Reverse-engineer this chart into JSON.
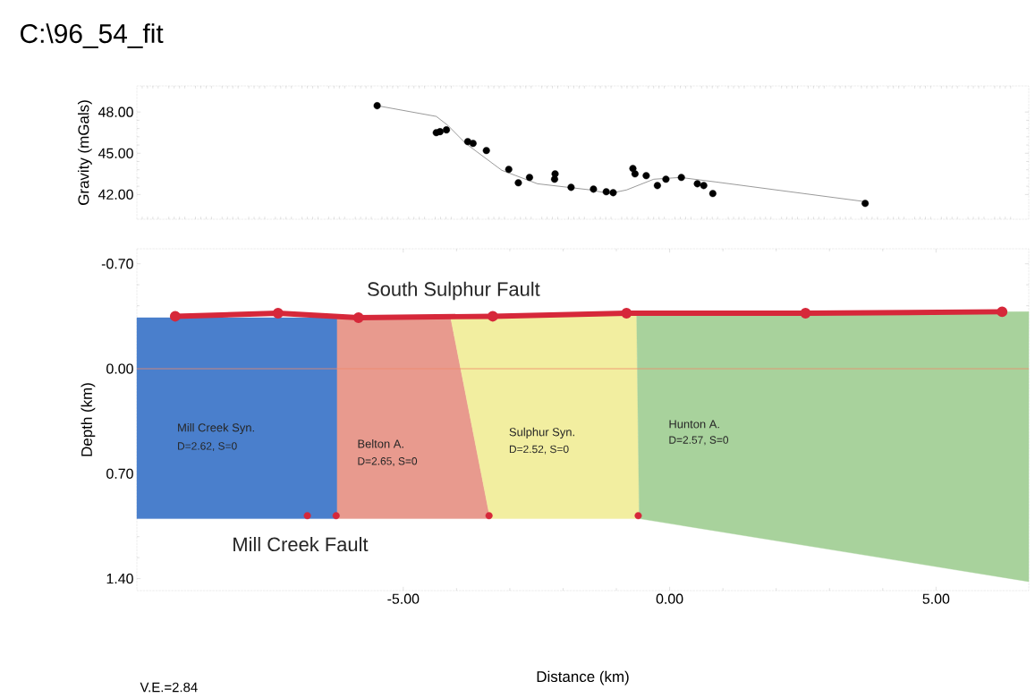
{
  "chart_data": [
    {
      "type": "scatter",
      "title": "C:\\96_54_fit",
      "ylabel": "Gravity (mGals)",
      "xlim": [
        -10,
        6.74
      ],
      "ylim": [
        40.2,
        49.9
      ],
      "tick_labels": "y",
      "grid": false,
      "yticks": [
        {
          "value": 42,
          "label": "42.00"
        },
        {
          "value": 45,
          "label": "45.00"
        },
        {
          "value": 48,
          "label": "48.00"
        }
      ],
      "series": [
        {
          "color": "#000000",
          "marker": "circle",
          "x": [
            -5.49,
            -4.38,
            -4.31,
            -4.19,
            -3.79,
            -3.69,
            -3.44,
            -3.02,
            -2.84,
            -2.63,
            -2.16,
            -2.15,
            -1.85,
            -1.43,
            -1.19,
            -1.06,
            -0.69,
            -0.65,
            -0.44,
            -0.23,
            -0.07,
            0.22,
            0.52,
            0.64,
            0.81,
            3.67
          ],
          "values": [
            48.46,
            46.5,
            46.57,
            46.7,
            45.85,
            45.72,
            45.2,
            43.83,
            42.85,
            43.24,
            43.11,
            43.5,
            42.52,
            42.39,
            42.2,
            42.13,
            43.89,
            43.5,
            43.37,
            42.65,
            43.11,
            43.24,
            42.78,
            42.65,
            42.07,
            41.35
          ]
        },
        {
          "type": "line",
          "color": "#555555",
          "marker": "none",
          "line_style": "solid",
          "x": [
            -5.49,
            -4.38,
            -4.16,
            -3.83,
            -3.15,
            -2.48,
            -1.48,
            -1.14,
            -0.81,
            -0.3,
            0.2,
            0.87,
            3.67
          ],
          "values": [
            48.46,
            47.68,
            47.02,
            45.72,
            43.76,
            42.78,
            42.33,
            42.07,
            42.33,
            43.11,
            43.24,
            42.91,
            41.48
          ]
        }
      ]
    },
    {
      "type": "area",
      "xlabel": "Distance (km)",
      "ylabel": "Depth (km)",
      "xlim": [
        -10,
        6.74
      ],
      "ylim": [
        1.48,
        -0.8
      ],
      "grid": false,
      "xticks": [
        {
          "value": -5,
          "label": "-5.00"
        },
        {
          "value": 0,
          "label": "0.00"
        },
        {
          "value": 5,
          "label": "5.00"
        }
      ],
      "yticks": [
        {
          "value": -0.7,
          "label": "-0.70"
        },
        {
          "value": 0,
          "label": "0.00"
        },
        {
          "value": 0.7,
          "label": "0.70"
        },
        {
          "value": 1.4,
          "label": "1.40"
        }
      ],
      "ref_lines": [
        {
          "axis": "y",
          "value": 0,
          "color": "#f08a6a"
        }
      ],
      "series": [
        {
          "color": "#4a7fcc",
          "x": [
            -10,
            -6.24,
            -6.24,
            -10
          ],
          "values": [
            -0.34,
            -0.34,
            1.0,
            1.0
          ]
        },
        {
          "color": "#e89a8e",
          "x": [
            -6.24,
            -4.11,
            -3.37,
            -6.24
          ],
          "values": [
            -0.34,
            -0.34,
            1.0,
            1.0
          ]
        },
        {
          "color": "#f2eea0",
          "x": [
            -4.11,
            -0.62,
            -0.57,
            -3.37
          ],
          "values": [
            -0.34,
            -0.37,
            1.0,
            1.0
          ]
        },
        {
          "color": "#a8d29c",
          "x": [
            -0.62,
            6.74,
            6.74,
            -0.57
          ],
          "values": [
            -0.37,
            -0.38,
            1.42,
            1.0
          ]
        },
        {
          "type": "line",
          "color": "#d6283a",
          "marker": "circle",
          "line_style": "solid",
          "x": [
            -9.28,
            -7.35,
            -5.84,
            -3.32,
            -0.81,
            2.55,
            6.24
          ],
          "values": [
            -0.35,
            -0.37,
            -0.34,
            -0.35,
            -0.37,
            -0.37,
            -0.38
          ]
        },
        {
          "type": "scatter",
          "color": "#d6283a",
          "marker": "circle",
          "x": [
            -6.8,
            -6.26,
            -3.39,
            -0.59
          ],
          "values": [
            0.98,
            0.98,
            0.98,
            0.98
          ]
        }
      ],
      "annotations": [
        "South Sulphur Fault",
        "Mill Creek Fault",
        "Mill Creek Syn.",
        "D=2.62, S=0",
        "Belton A.",
        "D=2.65, S=0",
        "Sulphur Syn.",
        "D=2.52, S=0",
        "Hunton A.",
        "D=2.57, S=0",
        "V.E.=2.84"
      ]
    }
  ]
}
